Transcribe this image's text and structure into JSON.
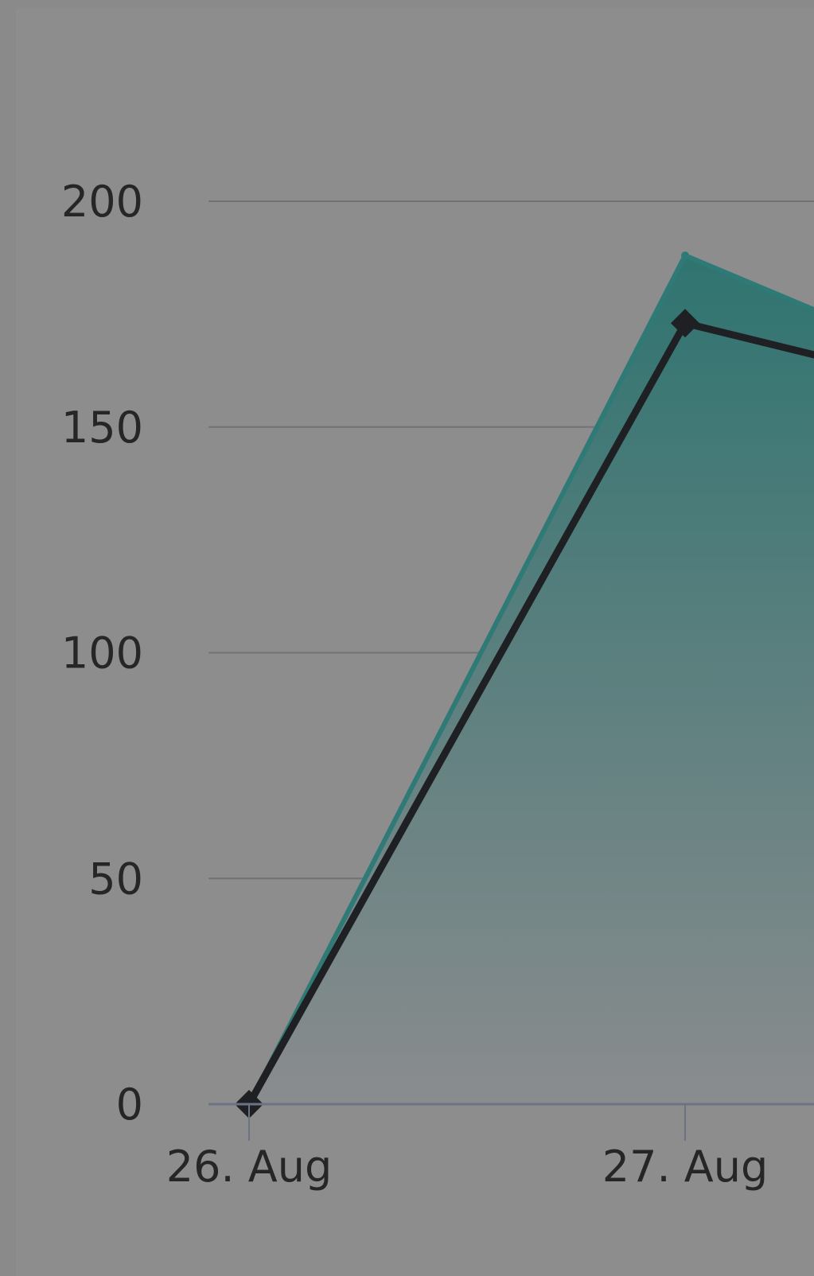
{
  "colors": {
    "background": "#8d8d8d",
    "grid": "#6f7378",
    "baseline": "#6b7384",
    "area_top": "#2f7470",
    "area_bottom": "#8a8c8e",
    "area_edge": "#2f7a76",
    "line": "#1f2023",
    "marker": "#1f2023",
    "text": "#262626"
  },
  "chart_data": {
    "type": "area",
    "title": "",
    "xlabel": "",
    "ylabel": "",
    "x": [
      "26. Aug",
      "27. Aug"
    ],
    "y_ticks": [
      "0",
      "50",
      "100",
      "150",
      "200"
    ],
    "ylim": [
      0,
      200
    ],
    "grid": true,
    "legend": "none",
    "series": [
      {
        "values": [
          0,
          188
        ],
        "style": "area",
        "continues_right": 176
      },
      {
        "values": [
          0,
          173
        ],
        "style": "line",
        "marker": "diamond",
        "continues_right": 166
      }
    ]
  }
}
